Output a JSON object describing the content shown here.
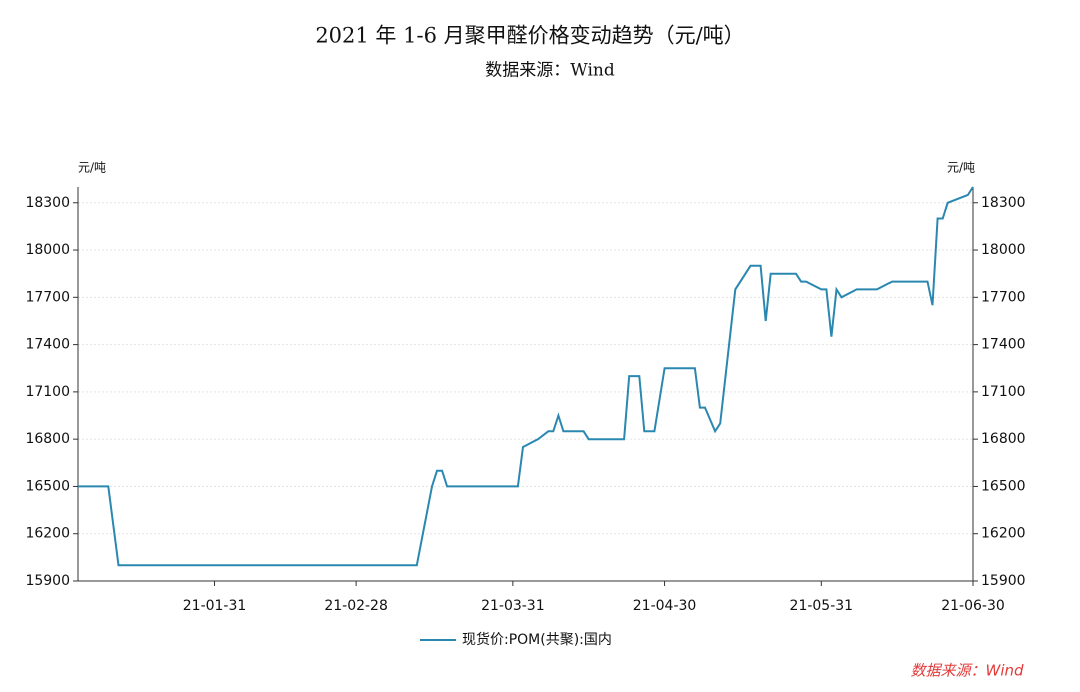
{
  "chart_data": {
    "type": "line",
    "title": "2021 年 1-6 月聚甲醛价格变动趋势（元/吨）",
    "subtitle": "数据来源：Wind",
    "y_label": "元/吨",
    "source_note": "数据来源：Wind",
    "x": [
      "21-01-04",
      "21-01-10",
      "21-01-12",
      "21-03-12",
      "21-03-15",
      "21-03-16",
      "21-03-17",
      "21-03-18",
      "21-04-01",
      "21-04-02",
      "21-04-05",
      "21-04-07",
      "21-04-08",
      "21-04-09",
      "21-04-10",
      "21-04-14",
      "21-04-15",
      "21-04-22",
      "21-04-23",
      "21-04-25",
      "21-04-26",
      "21-04-28",
      "21-04-30",
      "21-05-06",
      "21-05-07",
      "21-05-08",
      "21-05-10",
      "21-05-11",
      "21-05-14",
      "21-05-17",
      "21-05-19",
      "21-05-20",
      "21-05-21",
      "21-05-26",
      "21-05-27",
      "21-05-28",
      "21-05-31",
      "21-06-01",
      "21-06-02",
      "21-06-03",
      "21-06-04",
      "21-06-07",
      "21-06-11",
      "21-06-14",
      "21-06-21",
      "21-06-22",
      "21-06-23",
      "21-06-24",
      "21-06-25",
      "21-06-29",
      "21-06-30"
    ],
    "series": [
      {
        "name": "现货价:POM(共聚):国内",
        "color": "#2a88b0",
        "values": [
          16500,
          16500,
          16000,
          16000,
          16500,
          16600,
          16600,
          16500,
          16500,
          16750,
          16800,
          16850,
          16850,
          16950,
          16850,
          16850,
          16800,
          16800,
          17200,
          17200,
          16850,
          16850,
          17250,
          17250,
          17000,
          17000,
          16850,
          16900,
          17750,
          17900,
          17900,
          17550,
          17850,
          17850,
          17800,
          17800,
          17750,
          17750,
          17450,
          17750,
          17700,
          17750,
          17750,
          17800,
          17800,
          17650,
          18200,
          18200,
          18300,
          18350,
          18400
        ]
      }
    ],
    "xlim": [
      "21-01-04",
      "21-06-30"
    ],
    "xticks": [
      "21-01-31",
      "21-02-28",
      "21-03-31",
      "21-04-30",
      "21-05-31",
      "21-06-30"
    ],
    "ylim": [
      15900,
      18400
    ],
    "yticks": [
      15900,
      16200,
      16500,
      16800,
      17100,
      17400,
      17700,
      18000,
      18300
    ],
    "grid": true,
    "legend": "bottom"
  }
}
